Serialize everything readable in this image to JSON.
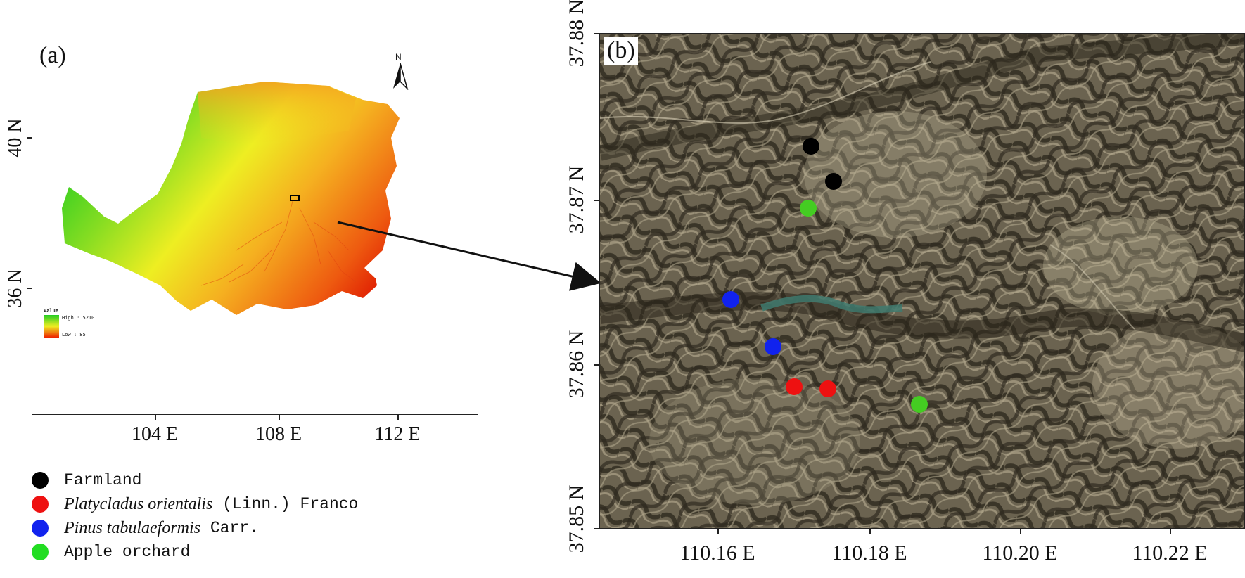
{
  "panel_a": {
    "label": "(a)",
    "north_label": "N",
    "lat_labels": [
      "40 N",
      "36 N"
    ],
    "lon_labels": [
      "104 E",
      "108 E",
      "112 E"
    ],
    "elevation_legend": {
      "title": "Value",
      "high": "High : 5210",
      "low": "Low : 85",
      "colors": [
        "#22cc22",
        "#eeee22",
        "#ee2200"
      ]
    }
  },
  "panel_b": {
    "label": "(b)",
    "lat_labels": [
      "37.88 N",
      "37.87 N",
      "37.86 N",
      "37.85 N"
    ],
    "lon_labels": [
      "110.16 E",
      "110.18 E",
      "110.20 E",
      "110.22 E"
    ]
  },
  "legend": {
    "items": [
      {
        "type": "farmland",
        "color": "#000000",
        "plain": "Farmland"
      },
      {
        "type": "platycladus",
        "color": "#ee1111",
        "italic": "Platycladus orientalis",
        "rest": " (Linn.) Franco"
      },
      {
        "type": "pinus",
        "color": "#1122ee",
        "italic": "Pinus tabulaeformis",
        "rest": " Carr."
      },
      {
        "type": "apple",
        "color": "#22dd22",
        "plain": "Apple orchard"
      }
    ]
  },
  "sample_points": [
    {
      "type": "farmland",
      "color": "#000000"
    },
    {
      "type": "farmland",
      "color": "#000000"
    },
    {
      "type": "apple",
      "color": "#44cc22"
    },
    {
      "type": "pinus",
      "color": "#1122ee"
    },
    {
      "type": "pinus",
      "color": "#1122ee"
    },
    {
      "type": "platycladus",
      "color": "#ee1111"
    },
    {
      "type": "platycladus",
      "color": "#ee1111"
    },
    {
      "type": "apple",
      "color": "#44cc22"
    }
  ]
}
